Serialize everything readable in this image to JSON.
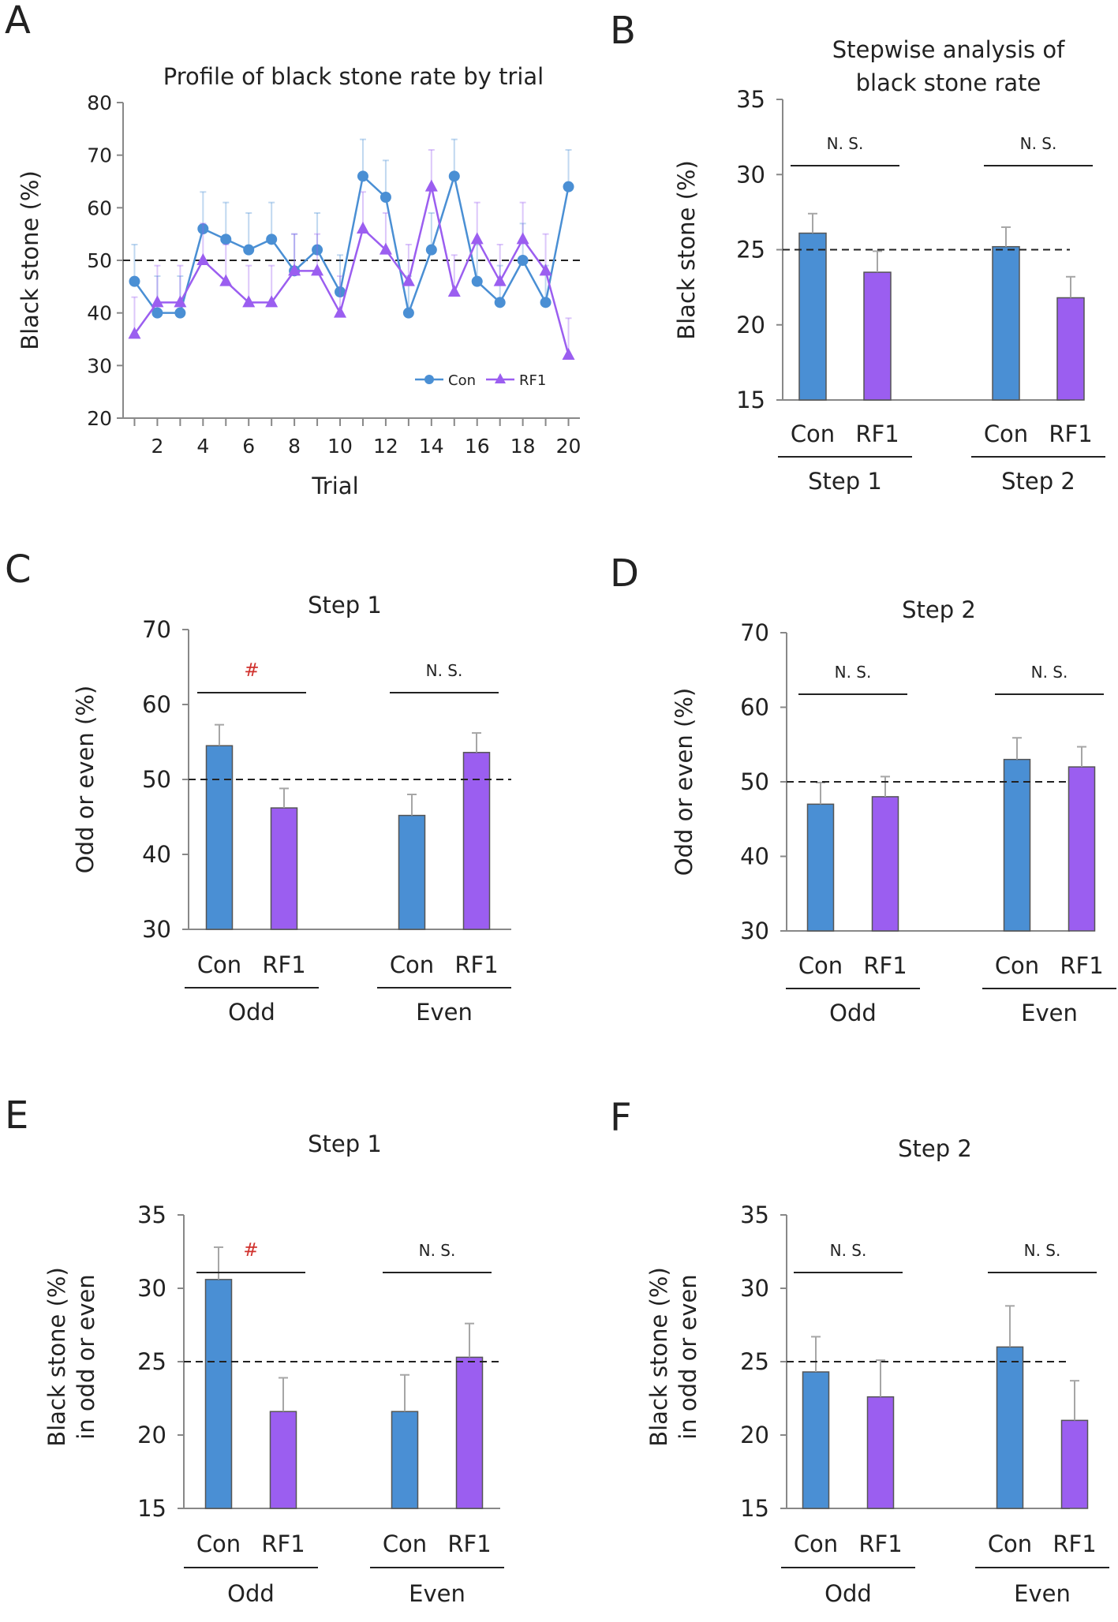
{
  "colors": {
    "con": "#4a8fd4",
    "rf1": "#9b5ef0",
    "sig": "#d0312d",
    "axis": "#888888",
    "err": "#a6a6a6"
  },
  "legend": {
    "con": "Con",
    "rf1": "RF1"
  },
  "chart_data": [
    {
      "panel": "A",
      "type": "line",
      "title": "Profile of black stone rate by trial",
      "xlabel": "Trial",
      "ylabel": "Black stone (%)",
      "ylim": [
        20,
        80
      ],
      "yticks": [
        20,
        30,
        40,
        50,
        60,
        70,
        80
      ],
      "xticks": [
        2,
        4,
        6,
        8,
        10,
        12,
        14,
        16,
        18,
        20
      ],
      "x": [
        1,
        2,
        3,
        4,
        5,
        6,
        7,
        8,
        9,
        10,
        11,
        12,
        13,
        14,
        15,
        16,
        17,
        18,
        19,
        20
      ],
      "reference_line": 50,
      "series": [
        {
          "name": "Con",
          "marker": "circle",
          "values": [
            46,
            40,
            40,
            56,
            54,
            52,
            54,
            48,
            52,
            44,
            66,
            62,
            40,
            52,
            66,
            46,
            42,
            50,
            42,
            64
          ],
          "errors": [
            7,
            7,
            7,
            7,
            7,
            7,
            7,
            7,
            7,
            7,
            7,
            7,
            7,
            7,
            7,
            7,
            7,
            7,
            7,
            7
          ]
        },
        {
          "name": "RF1",
          "marker": "triangle",
          "values": [
            36,
            42,
            42,
            50,
            46,
            42,
            42,
            48,
            48,
            40,
            56,
            52,
            46,
            64,
            44,
            54,
            46,
            54,
            48,
            32
          ],
          "errors": [
            7,
            7,
            7,
            7,
            7,
            7,
            7,
            7,
            7,
            7,
            7,
            7,
            7,
            7,
            7,
            7,
            7,
            7,
            7,
            7
          ]
        }
      ],
      "legend_position": "bottom-right"
    },
    {
      "panel": "B",
      "type": "bar",
      "title": "Stepwise analysis of black stone rate",
      "title_lines": [
        "Stepwise analysis of",
        "black stone rate"
      ],
      "ylabel": "Black stone (%)",
      "ylabel_lines": [
        "Black stone (%)"
      ],
      "ylim": [
        15,
        35
      ],
      "yticks": [
        15,
        20,
        25,
        30,
        35
      ],
      "reference_line": 25,
      "groups": [
        {
          "label": "Step 1",
          "annotation": "N. S.",
          "bars": [
            {
              "name": "Con",
              "value": 26.1,
              "error": 1.3
            },
            {
              "name": "RF1",
              "value": 23.5,
              "error": 1.4
            }
          ]
        },
        {
          "label": "Step 2",
          "annotation": "N. S.",
          "bars": [
            {
              "name": "Con",
              "value": 25.2,
              "error": 1.3
            },
            {
              "name": "RF1",
              "value": 21.8,
              "error": 1.4
            }
          ]
        }
      ]
    },
    {
      "panel": "C",
      "type": "bar",
      "title": "Step 1",
      "title_lines": [
        "Step 1"
      ],
      "ylabel": "Odd or even (%)",
      "ylabel_lines": [
        "Odd or even (%)"
      ],
      "ylim": [
        30,
        70
      ],
      "yticks": [
        30,
        40,
        50,
        60,
        70
      ],
      "reference_line": 50,
      "groups": [
        {
          "label": "Odd",
          "annotation": "#",
          "bars": [
            {
              "name": "Con",
              "value": 54.5,
              "error": 2.8
            },
            {
              "name": "RF1",
              "value": 46.2,
              "error": 2.6
            }
          ]
        },
        {
          "label": "Even",
          "annotation": "N. S.",
          "bars": [
            {
              "name": "Con",
              "value": 45.2,
              "error": 2.8
            },
            {
              "name": "RF1",
              "value": 53.6,
              "error": 2.6
            }
          ]
        }
      ]
    },
    {
      "panel": "D",
      "type": "bar",
      "title": "Step 2",
      "title_lines": [
        "Step 2"
      ],
      "ylabel": "Odd or even (%)",
      "ylabel_lines": [
        "Odd or even (%)"
      ],
      "ylim": [
        30,
        70
      ],
      "yticks": [
        30,
        40,
        50,
        60,
        70
      ],
      "reference_line": 50,
      "groups": [
        {
          "label": "Odd",
          "annotation": "N. S.",
          "bars": [
            {
              "name": "Con",
              "value": 47,
              "error": 2.9
            },
            {
              "name": "RF1",
              "value": 48,
              "error": 2.7
            }
          ]
        },
        {
          "label": "Even",
          "annotation": "N. S.",
          "bars": [
            {
              "name": "Con",
              "value": 53,
              "error": 2.9
            },
            {
              "name": "RF1",
              "value": 52,
              "error": 2.7
            }
          ]
        }
      ]
    },
    {
      "panel": "E",
      "type": "bar",
      "title": "Step 1",
      "title_lines": [
        "Step 1"
      ],
      "ylabel": "Black stone (%) in odd or even",
      "ylabel_lines": [
        "Black stone (%)",
        "in odd or even"
      ],
      "ylim": [
        15,
        35
      ],
      "yticks": [
        15,
        20,
        25,
        30,
        35
      ],
      "reference_line": 25,
      "groups": [
        {
          "label": "Odd",
          "annotation": "#",
          "bars": [
            {
              "name": "Con",
              "value": 30.6,
              "error": 2.2
            },
            {
              "name": "RF1",
              "value": 21.6,
              "error": 2.3
            }
          ]
        },
        {
          "label": "Even",
          "annotation": "N. S.",
          "bars": [
            {
              "name": "Con",
              "value": 21.6,
              "error": 2.5
            },
            {
              "name": "RF1",
              "value": 25.3,
              "error": 2.3
            }
          ]
        }
      ]
    },
    {
      "panel": "F",
      "type": "bar",
      "title": "Step 2",
      "title_lines": [
        "Step 2"
      ],
      "ylabel": "Black stone (%) in odd or even",
      "ylabel_lines": [
        "Black stone (%)",
        "in odd or even"
      ],
      "ylim": [
        15,
        35
      ],
      "yticks": [
        15,
        20,
        25,
        30,
        35
      ],
      "reference_line": 25,
      "groups": [
        {
          "label": "Odd",
          "annotation": "N. S.",
          "bars": [
            {
              "name": "Con",
              "value": 24.3,
              "error": 2.4
            },
            {
              "name": "RF1",
              "value": 22.6,
              "error": 2.5
            }
          ]
        },
        {
          "label": "Even",
          "annotation": "N. S.",
          "bars": [
            {
              "name": "Con",
              "value": 26,
              "error": 2.8
            },
            {
              "name": "RF1",
              "value": 21,
              "error": 2.7
            }
          ]
        }
      ]
    }
  ]
}
